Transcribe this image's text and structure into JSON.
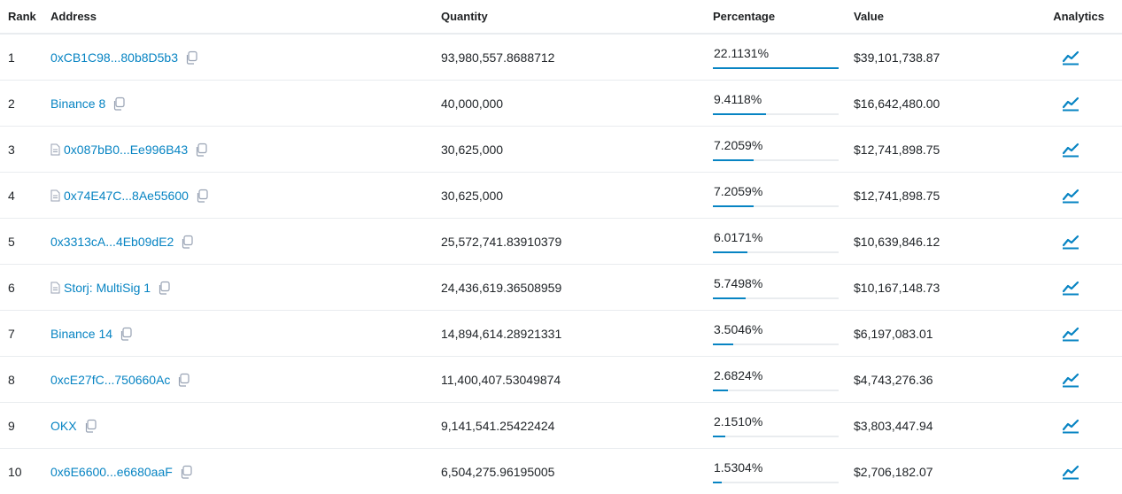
{
  "header": {
    "rank": "Rank",
    "address": "Address",
    "quantity": "Quantity",
    "percentage": "Percentage",
    "value": "Value",
    "analytics": "Analytics"
  },
  "colors": {
    "link": "#0784c3",
    "bar_track": "#e9ecef",
    "bar_fill": "#0784c3"
  },
  "rows": [
    {
      "rank": "1",
      "address": "0xCB1C98...80b8D5b3",
      "contract": false,
      "quantity": "93,980,557.8688712",
      "percentage": "22.1131%",
      "pct_value": 22.1131,
      "value": "$39,101,738.87"
    },
    {
      "rank": "2",
      "address": "Binance 8",
      "contract": false,
      "quantity": "40,000,000",
      "percentage": "9.4118%",
      "pct_value": 9.4118,
      "value": "$16,642,480.00"
    },
    {
      "rank": "3",
      "address": "0x087bB0...Ee996B43",
      "contract": true,
      "quantity": "30,625,000",
      "percentage": "7.2059%",
      "pct_value": 7.2059,
      "value": "$12,741,898.75"
    },
    {
      "rank": "4",
      "address": "0x74E47C...8Ae55600",
      "contract": true,
      "quantity": "30,625,000",
      "percentage": "7.2059%",
      "pct_value": 7.2059,
      "value": "$12,741,898.75"
    },
    {
      "rank": "5",
      "address": "0x3313cA...4Eb09dE2",
      "contract": false,
      "quantity": "25,572,741.83910379",
      "percentage": "6.0171%",
      "pct_value": 6.0171,
      "value": "$10,639,846.12"
    },
    {
      "rank": "6",
      "address": "Storj: MultiSig 1",
      "contract": true,
      "quantity": "24,436,619.36508959",
      "percentage": "5.7498%",
      "pct_value": 5.7498,
      "value": "$10,167,148.73"
    },
    {
      "rank": "7",
      "address": "Binance 14",
      "contract": false,
      "quantity": "14,894,614.28921331",
      "percentage": "3.5046%",
      "pct_value": 3.5046,
      "value": "$6,197,083.01"
    },
    {
      "rank": "8",
      "address": "0xcE27fC...750660Ac",
      "contract": false,
      "quantity": "11,400,407.53049874",
      "percentage": "2.6824%",
      "pct_value": 2.6824,
      "value": "$4,743,276.36"
    },
    {
      "rank": "9",
      "address": "OKX",
      "contract": false,
      "quantity": "9,141,541.25422424",
      "percentage": "2.1510%",
      "pct_value": 2.151,
      "value": "$3,803,447.94"
    },
    {
      "rank": "10",
      "address": "0x6E6600...e6680aaF",
      "contract": false,
      "quantity": "6,504,275.96195005",
      "percentage": "1.5304%",
      "pct_value": 1.5304,
      "value": "$2,706,182.07"
    }
  ]
}
